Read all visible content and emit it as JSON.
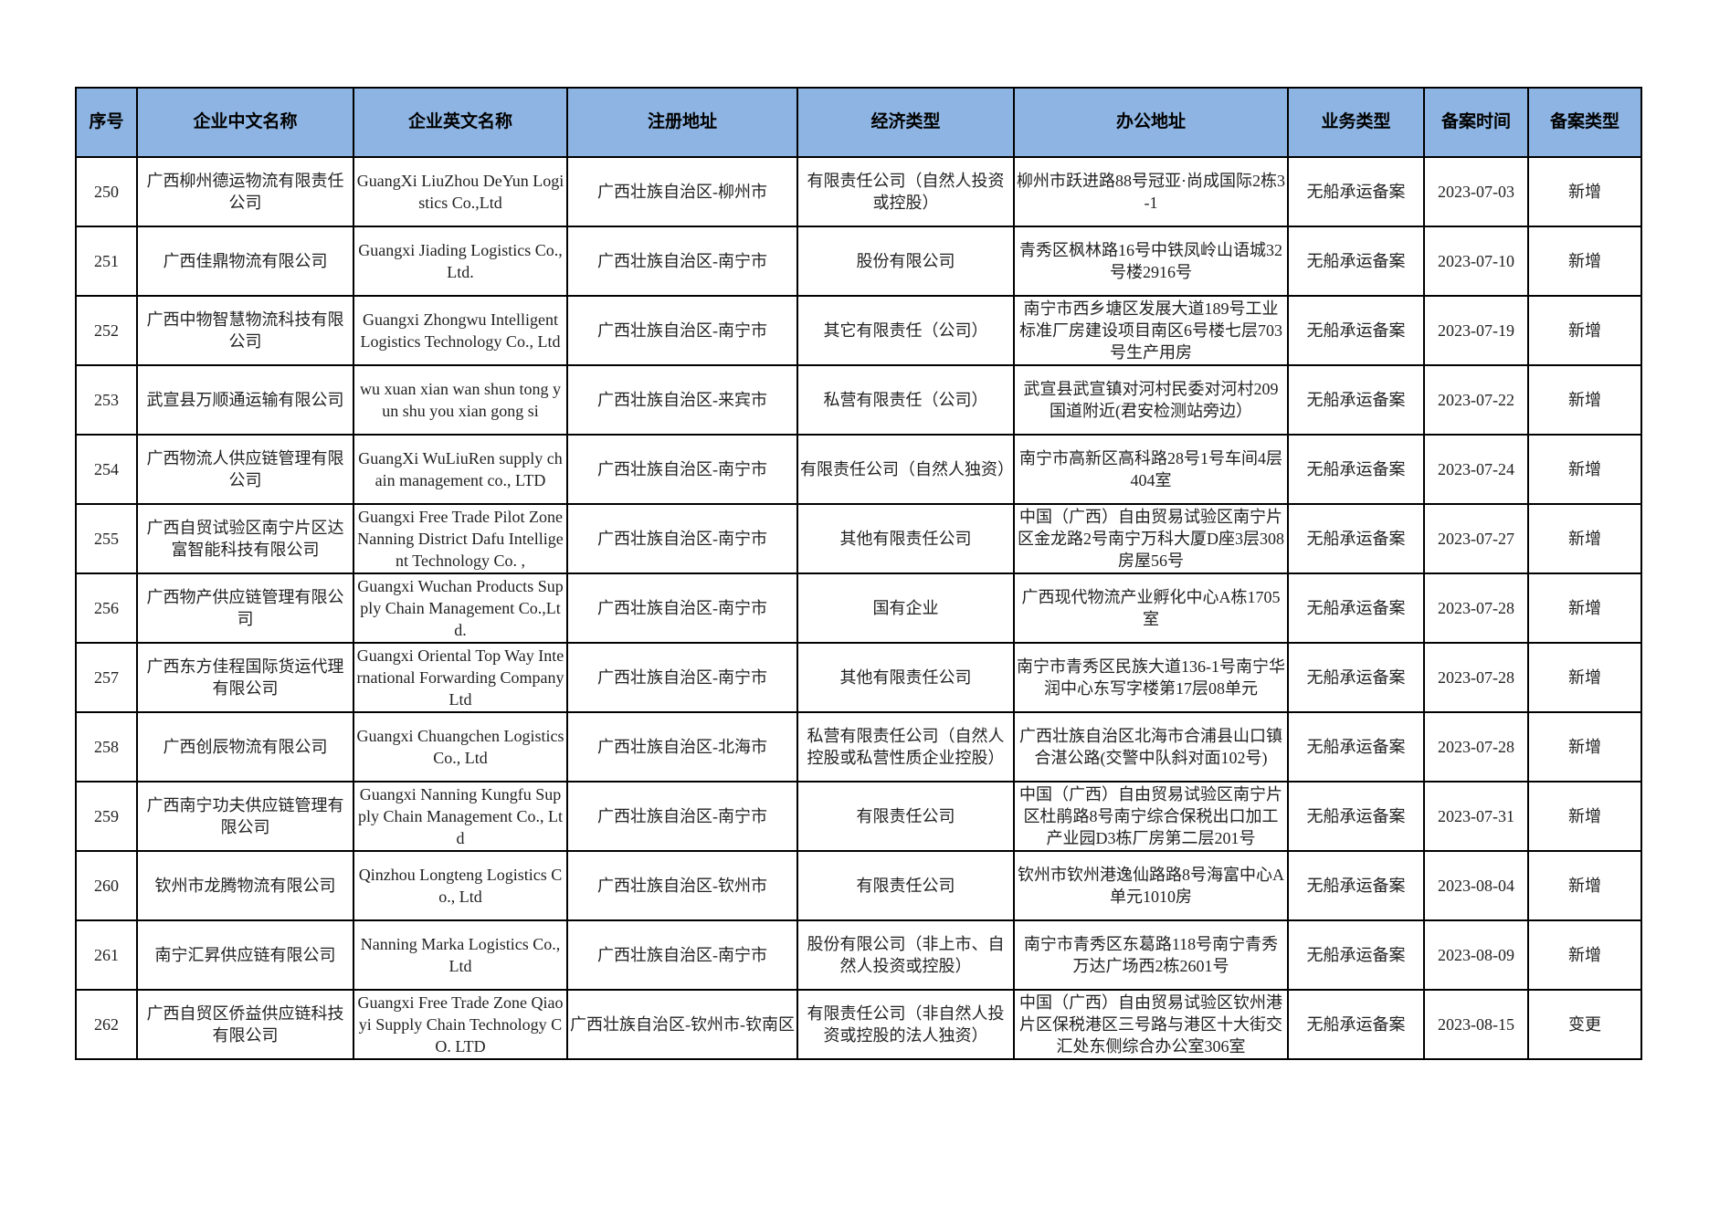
{
  "header": [
    "序号",
    "企业中文名称",
    "企业英文名称",
    "注册地址",
    "经济类型",
    "办公地址",
    "业务类型",
    "备案时间",
    "备案类型"
  ],
  "header_color": "#8DB4E2",
  "rows": [
    [
      "250",
      "广西柳州德运物流有限责任公司",
      "GuangXi LiuZhou DeYun Logistics Co.,Ltd",
      "广西壮族自治区-柳州市",
      "有限责任公司（自然人投资或控股）",
      "柳州市跃进路88号冠亚·尚成国际2栋3-1",
      "无船承运备案",
      "2023-07-03",
      "新增"
    ],
    [
      "251",
      "广西佳鼎物流有限公司",
      "Guangxi Jiading Logistics Co.,Ltd.",
      "广西壮族自治区-南宁市",
      "股份有限公司",
      "青秀区枫林路16号中铁凤岭山语城32号楼2916号",
      "无船承运备案",
      "2023-07-10",
      "新增"
    ],
    [
      "252",
      "广西中物智慧物流科技有限公司",
      "Guangxi Zhongwu Intelligent Logistics Technology Co., Ltd",
      "广西壮族自治区-南宁市",
      "其它有限责任（公司）",
      "南宁市西乡塘区发展大道189号工业标准厂房建设项目南区6号楼七层703号生产用房",
      "无船承运备案",
      "2023-07-19",
      "新增"
    ],
    [
      "253",
      "武宣县万顺通运输有限公司",
      "wu xuan xian wan shun tong yun shu you xian gong  si",
      "广西壮族自治区-来宾市",
      "私营有限责任（公司）",
      "武宣县武宣镇对河村民委对河村209国道附近(君安检测站旁边）",
      "无船承运备案",
      "2023-07-22",
      "新增"
    ],
    [
      "254",
      "广西物流人供应链管理有限公司",
      "GuangXi WuLiuRen supply chain management co., LTD",
      "广西壮族自治区-南宁市",
      "有限责任公司（自然人独资）",
      "南宁市高新区高科路28号1号车间4层404室",
      "无船承运备案",
      "2023-07-24",
      "新增"
    ],
    [
      "255",
      "广西自贸试验区南宁片区达富智能科技有限公司",
      "Guangxi Free Trade Pilot Zone Nanning District Dafu Intelligent Technology Co. ,",
      "广西壮族自治区-南宁市",
      "其他有限责任公司",
      "中国（广西）自由贸易试验区南宁片区金龙路2号南宁万科大厦D座3层308房屋56号",
      "无船承运备案",
      "2023-07-27",
      "新增"
    ],
    [
      "256",
      "广西物产供应链管理有限公司",
      "Guangxi Wuchan Products Supply Chain Management Co.,Ltd.",
      "广西壮族自治区-南宁市",
      "国有企业",
      "广西现代物流产业孵化中心A栋1705室",
      "无船承运备案",
      "2023-07-28",
      "新增"
    ],
    [
      "257",
      "广西东方佳程国际货运代理有限公司",
      "Guangxi Oriental Top Way International Forwarding Company Ltd",
      "广西壮族自治区-南宁市",
      "其他有限责任公司",
      "南宁市青秀区民族大道136-1号南宁华润中心东写字楼第17层08单元",
      "无船承运备案",
      "2023-07-28",
      "新增"
    ],
    [
      "258",
      "广西创辰物流有限公司",
      "Guangxi Chuangchen Logistics Co., Ltd",
      "广西壮族自治区-北海市",
      "私营有限责任公司（自然人控股或私营性质企业控股）",
      "广西壮族自治区北海市合浦县山口镇合湛公路(交警中队斜对面102号)",
      "无船承运备案",
      "2023-07-28",
      "新增"
    ],
    [
      "259",
      "广西南宁功夫供应链管理有限公司",
      "Guangxi Nanning Kungfu Supply Chain Management Co., Ltd",
      "广西壮族自治区-南宁市",
      "有限责任公司",
      "中国（广西）自由贸易试验区南宁片区杜鹃路8号南宁综合保税出口加工产业园D3栋厂房第二层201号",
      "无船承运备案",
      "2023-07-31",
      "新增"
    ],
    [
      "260",
      "钦州市龙腾物流有限公司",
      "Qinzhou Longteng Logistics Co., Ltd",
      "广西壮族自治区-钦州市",
      "有限责任公司",
      "钦州市钦州港逸仙路路8号海富中心A单元1010房",
      "无船承运备案",
      "2023-08-04",
      "新增"
    ],
    [
      "261",
      "南宁汇昇供应链有限公司",
      "Nanning Marka Logistics Co.,Ltd",
      "广西壮族自治区-南宁市",
      "股份有限公司（非上市、自然人投资或控股）",
      "南宁市青秀区东葛路118号南宁青秀万达广场西2栋2601号",
      "无船承运备案",
      "2023-08-09",
      "新增"
    ],
    [
      "262",
      "广西自贸区侨益供应链科技有限公司",
      "Guangxi Free Trade Zone Qiaoyi Supply Chain Technology CO.   LTD",
      "广西壮族自治区-钦州市-钦南区",
      "有限责任公司（非自然人投资或控股的法人独资）",
      "中国（广西）自由贸易试验区钦州港片区保税港区三号路与港区十大街交汇处东侧综合办公室306室",
      "无船承运备案",
      "2023-08-15",
      "变更"
    ]
  ]
}
